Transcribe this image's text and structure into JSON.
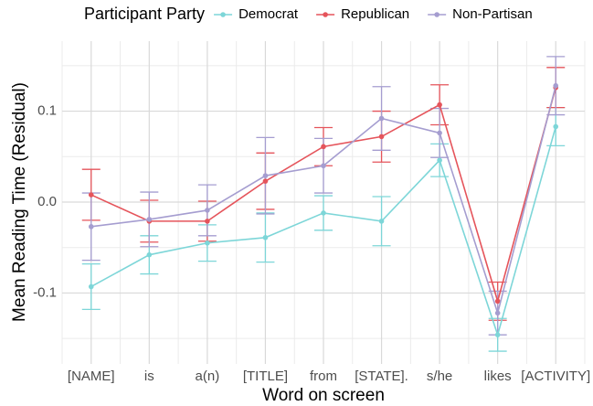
{
  "chart_data": {
    "type": "line",
    "legend_title": "Participant Party",
    "legend_position": "top",
    "x_label": "Word on screen",
    "y_label": "Mean Reading Time (Residual)",
    "categories": [
      "[NAME]",
      "is",
      "a(n)",
      "[TITLE]",
      "from",
      "[STATE].",
      "s/he",
      "likes",
      "[ACTIVITY]"
    ],
    "series": [
      {
        "name": "Democrat",
        "color": "#7dd6d8",
        "values": [
          -0.093,
          -0.058,
          -0.045,
          -0.039,
          -0.012,
          -0.021,
          0.046,
          -0.146,
          0.083
        ],
        "errors": [
          0.025,
          0.021,
          0.02,
          0.027,
          0.019,
          0.027,
          0.018,
          0.018,
          0.021
        ]
      },
      {
        "name": "Republican",
        "color": "#e5545b",
        "values": [
          0.008,
          -0.021,
          -0.021,
          0.023,
          0.061,
          0.072,
          0.107,
          -0.109,
          0.126
        ],
        "errors": [
          0.028,
          0.023,
          0.022,
          0.031,
          0.021,
          0.028,
          0.022,
          0.021,
          0.022
        ]
      },
      {
        "name": "Non-Partisan",
        "color": "#a59dd0",
        "values": [
          -0.027,
          -0.019,
          -0.009,
          0.029,
          0.04,
          0.092,
          0.076,
          -0.122,
          0.128
        ],
        "errors": [
          0.037,
          0.03,
          0.028,
          0.042,
          0.03,
          0.035,
          0.027,
          0.024,
          0.032
        ]
      }
    ],
    "ylim": [
      -0.178,
      0.177
    ],
    "yticks": [
      -0.1,
      {
        "value": 0,
        "label": "0.0"
      },
      0.1
    ],
    "y_minor_ticks": [
      -0.15,
      -0.05,
      0.05,
      0.15
    ],
    "grid": true
  }
}
